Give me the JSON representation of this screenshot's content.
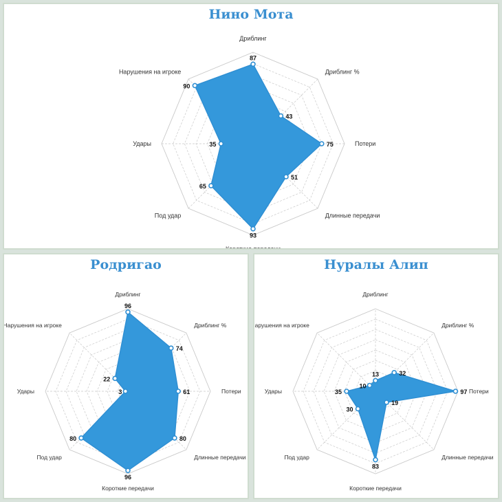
{
  "colors": {
    "fill": "#3498db",
    "stroke": "#2f8fd3",
    "grid": "#c9c9c9",
    "text": "#333333",
    "title": "#3a8fd0",
    "point_fill": "#ffffff"
  },
  "chart_data": [
    {
      "type": "radar",
      "title": "Нино Мота",
      "axes": [
        "Дриблинг",
        "Дриблинг %",
        "Потери",
        "Длинные передачи",
        "Короткие передачи",
        "Под удар",
        "Удары",
        "Нарушения на игроке"
      ],
      "values": [
        87,
        43,
        75,
        51,
        93,
        65,
        35,
        90
      ],
      "range": [
        0,
        100
      ],
      "grid_rings": 8,
      "legend": "none"
    },
    {
      "type": "radar",
      "title": "Родригао",
      "axes": [
        "Дриблинг",
        "Дриблинг %",
        "Потери",
        "Длинные передачи",
        "Короткие передачи",
        "Под удар",
        "Удары",
        "Нарушения на игроке"
      ],
      "values": [
        96,
        74,
        61,
        80,
        96,
        80,
        3,
        22
      ],
      "range": [
        0,
        100
      ],
      "grid_rings": 8,
      "legend": "none"
    },
    {
      "type": "radar",
      "title": "Нуралы Алип",
      "axes": [
        "Дриблинг",
        "Дриблинг %",
        "Потери",
        "Длинные передачи",
        "Короткие передачи",
        "Под удар",
        "Удары",
        "Нарушения на игроке"
      ],
      "values": [
        13,
        32,
        97,
        19,
        83,
        30,
        35,
        10
      ],
      "range": [
        0,
        100
      ],
      "grid_rings": 8,
      "legend": "none"
    }
  ]
}
